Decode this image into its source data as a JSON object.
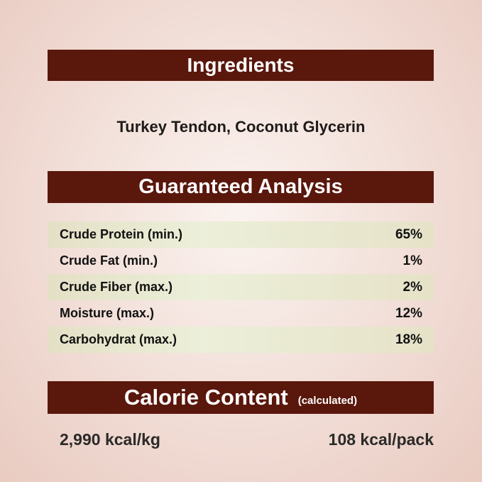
{
  "ingredients": {
    "title": "Ingredients",
    "text": "Turkey Tendon, Coconut Glycerin"
  },
  "analysis": {
    "title": "Guaranteed Analysis",
    "rows": [
      {
        "label": "Crude Protein (min.)",
        "value": "65%"
      },
      {
        "label": "Crude Fat (min.)",
        "value": "1%"
      },
      {
        "label": "Crude Fiber (max.)",
        "value": "2%"
      },
      {
        "label": "Moisture (max.)",
        "value": "12%"
      },
      {
        "label": "Carbohydrat (max.)",
        "value": "18%"
      }
    ]
  },
  "calorie": {
    "title": "Calorie Content",
    "subtitle": "(calculated)",
    "per_kg": "2,990 kcal/kg",
    "per_pack": "108 kcal/pack"
  },
  "colors": {
    "banner": "#5a170c",
    "row_highlight": "#e6e4cb"
  }
}
